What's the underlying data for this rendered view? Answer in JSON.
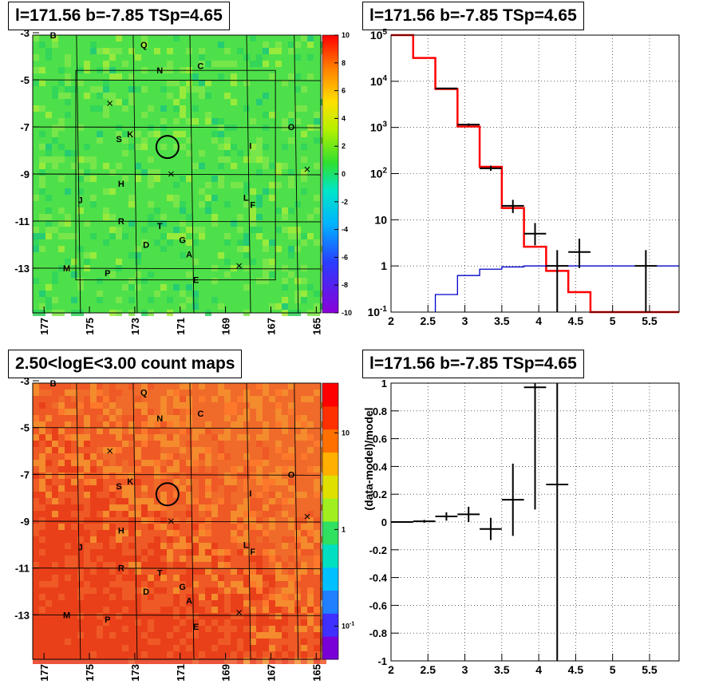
{
  "titles": {
    "top_left": "l=171.56 b=-7.85 TSp=4.65",
    "top_right": "l=171.56 b=-7.85 TSp=4.65",
    "bottom_left": "2.50<logE<3.00 count maps",
    "bottom_right": "l=171.56 b=-7.85 TSp=4.65"
  },
  "chart_data": [
    {
      "type": "heatmap",
      "panel": "top-left",
      "title": "l=171.56 b=-7.85 TSp=4.65",
      "x_ticks": [
        "177",
        "175",
        "173",
        "171",
        "169",
        "167",
        "165"
      ],
      "y_ticks": [
        "-3",
        "-5",
        "-7",
        "-9",
        "-11",
        "-13"
      ],
      "xlim": [
        177.5,
        164.8
      ],
      "ylim": [
        -14.9,
        -3.1
      ],
      "colorbar_ticks": [
        "10",
        "8",
        "6",
        "4",
        "2",
        "0",
        "-2",
        "-4",
        "-6",
        "-8",
        "-10"
      ],
      "colorbar_range": [
        -10,
        10
      ],
      "background_color": "#4ee04a",
      "source_labels": [
        {
          "label": "B",
          "l": 176.6,
          "b": -3.1
        },
        {
          "label": "Q",
          "l": 172.6,
          "b": -3.5
        },
        {
          "label": "N",
          "l": 171.9,
          "b": -4.6
        },
        {
          "label": "C",
          "l": 170.1,
          "b": -4.4
        },
        {
          "label": "O",
          "l": 166.1,
          "b": -7.0
        },
        {
          "label": "S",
          "l": 173.7,
          "b": -7.5
        },
        {
          "label": "K",
          "l": 173.2,
          "b": -7.3
        },
        {
          "label": "I",
          "l": 167.9,
          "b": -7.8
        },
        {
          "label": "H",
          "l": 173.6,
          "b": -9.4
        },
        {
          "label": "J",
          "l": 175.4,
          "b": -10.1
        },
        {
          "label": "L",
          "l": 168.1,
          "b": -10.0
        },
        {
          "label": "F",
          "l": 167.8,
          "b": -10.3
        },
        {
          "label": "R",
          "l": 173.6,
          "b": -11.0
        },
        {
          "label": "T",
          "l": 171.9,
          "b": -11.2
        },
        {
          "label": "G",
          "l": 170.9,
          "b": -11.8
        },
        {
          "label": "D",
          "l": 172.5,
          "b": -12.0
        },
        {
          "label": "A",
          "l": 170.6,
          "b": -12.4
        },
        {
          "label": "M",
          "l": 176.0,
          "b": -13.0
        },
        {
          "label": "P",
          "l": 174.2,
          "b": -13.2
        },
        {
          "label": "E",
          "l": 170.3,
          "b": -13.5
        }
      ],
      "crosses": [
        [
          174.1,
          -6.0
        ],
        [
          171.4,
          -9.0
        ],
        [
          168.4,
          -12.9
        ],
        [
          165.4,
          -8.8
        ]
      ],
      "circle": {
        "l": 171.56,
        "b": -7.85
      }
    },
    {
      "type": "line",
      "panel": "top-right",
      "title": "l=171.56 b=-7.85 TSp=4.65",
      "xlim": [
        2.0,
        5.9
      ],
      "ylim": [
        0.1,
        100000
      ],
      "log_y": true,
      "grid": true,
      "x_ticks": [
        "2",
        "2.5",
        "3",
        "3.5",
        "4",
        "4.5",
        "5",
        "5.5"
      ],
      "y_ticks": [
        "10^5",
        "10^4",
        "10^3",
        "10^2",
        "10",
        "1",
        "10^-1"
      ],
      "series": [
        {
          "color": "#ff0000",
          "style": "step",
          "edges": [
            2.0,
            2.3,
            2.6,
            2.9,
            3.2,
            3.5,
            3.8,
            4.1,
            4.4,
            4.7,
            5.0,
            5.3,
            5.6,
            5.9
          ],
          "values": [
            100000,
            32000,
            6800,
            1050,
            140,
            18,
            2.6,
            0.78,
            0.27,
            0.1,
            0.1,
            0.1,
            0.1
          ]
        },
        {
          "color": "#0000cc",
          "style": "step",
          "edges": [
            2.6,
            2.9,
            3.2,
            3.5,
            3.8,
            4.1,
            4.4,
            4.7,
            5.0,
            5.3,
            5.6,
            5.9
          ],
          "values": [
            0.24,
            0.62,
            0.85,
            0.95,
            1.0,
            1.0,
            1.0,
            1.0,
            1.0,
            1.0,
            1.0
          ]
        },
        {
          "color": "#000000",
          "style": "errorbar",
          "points": [
            {
              "x": 2.75,
              "xerr": 0.15,
              "y": 7000,
              "ylo": 6800,
              "yhi": 7200
            },
            {
              "x": 3.05,
              "xerr": 0.15,
              "y": 1150,
              "ylo": 1080,
              "yhi": 1220
            },
            {
              "x": 3.35,
              "xerr": 0.15,
              "y": 130,
              "ylo": 115,
              "yhi": 148
            },
            {
              "x": 3.65,
              "xerr": 0.15,
              "y": 20,
              "ylo": 14,
              "yhi": 27
            },
            {
              "x": 3.95,
              "xerr": 0.15,
              "y": 5,
              "ylo": 2.8,
              "yhi": 8.5
            },
            {
              "x": 4.25,
              "xerr": 0.15,
              "y": 1,
              "ylo": 0.1,
              "yhi": 2.2
            },
            {
              "x": 4.55,
              "xerr": 0.15,
              "y": 2,
              "ylo": 0.9,
              "yhi": 3.9
            },
            {
              "x": 5.45,
              "xerr": 0.15,
              "y": 1,
              "ylo": 0.1,
              "yhi": 2.2
            }
          ]
        }
      ]
    },
    {
      "type": "heatmap",
      "panel": "bottom-left",
      "title": "2.50<logE<3.00 count maps",
      "x_ticks": [
        "177",
        "175",
        "173",
        "171",
        "169",
        "167",
        "165"
      ],
      "y_ticks": [
        "-3",
        "-5",
        "-7",
        "-9",
        "-11",
        "-13"
      ],
      "xlim": [
        177.5,
        164.8
      ],
      "ylim": [
        -14.9,
        -3.1
      ],
      "colorbar_ticks": [
        "10",
        "1",
        "10^-1"
      ],
      "colorbar_log": true,
      "background_color": "#f06a2a",
      "source_labels": [
        {
          "label": "B",
          "l": 176.6,
          "b": -3.1
        },
        {
          "label": "Q",
          "l": 172.6,
          "b": -3.5
        },
        {
          "label": "N",
          "l": 171.9,
          "b": -4.6
        },
        {
          "label": "C",
          "l": 170.1,
          "b": -4.4
        },
        {
          "label": "O",
          "l": 166.1,
          "b": -7.0
        },
        {
          "label": "S",
          "l": 173.7,
          "b": -7.5
        },
        {
          "label": "K",
          "l": 173.2,
          "b": -7.3
        },
        {
          "label": "I",
          "l": 167.9,
          "b": -7.8
        },
        {
          "label": "H",
          "l": 173.6,
          "b": -9.4
        },
        {
          "label": "J",
          "l": 175.4,
          "b": -10.1
        },
        {
          "label": "L",
          "l": 168.1,
          "b": -10.0
        },
        {
          "label": "F",
          "l": 167.8,
          "b": -10.3
        },
        {
          "label": "R",
          "l": 173.6,
          "b": -11.0
        },
        {
          "label": "T",
          "l": 171.9,
          "b": -11.2
        },
        {
          "label": "G",
          "l": 170.9,
          "b": -11.8
        },
        {
          "label": "D",
          "l": 172.5,
          "b": -12.0
        },
        {
          "label": "A",
          "l": 170.6,
          "b": -12.4
        },
        {
          "label": "M",
          "l": 176.0,
          "b": -13.0
        },
        {
          "label": "P",
          "l": 174.2,
          "b": -13.2
        },
        {
          "label": "E",
          "l": 170.3,
          "b": -13.5
        }
      ],
      "crosses": [
        [
          174.1,
          -6.0
        ],
        [
          171.4,
          -9.0
        ],
        [
          168.4,
          -12.9
        ],
        [
          165.4,
          -8.8
        ]
      ],
      "circle": {
        "l": 171.56,
        "b": -7.85
      }
    },
    {
      "type": "scatter",
      "panel": "bottom-right",
      "title": "l=171.56 b=-7.85 TSp=4.65",
      "ylabel": "(data-model)/model",
      "xlim": [
        2.0,
        5.9
      ],
      "ylim": [
        -1,
        1
      ],
      "grid": true,
      "x_ticks": [
        "2",
        "2.5",
        "3",
        "3.5",
        "4",
        "4.5",
        "5",
        "5.5"
      ],
      "y_ticks": [
        "1",
        "0.8",
        "0.6",
        "0.4",
        "0.2",
        "0",
        "-0.2",
        "-0.4",
        "-0.6",
        "-0.8",
        "-1"
      ],
      "points": [
        {
          "x": 2.15,
          "xerr": 0.15,
          "y": 0.0,
          "ylo": -0.005,
          "yhi": 0.005
        },
        {
          "x": 2.45,
          "xerr": 0.15,
          "y": 0.005,
          "ylo": -0.005,
          "yhi": 0.015
        },
        {
          "x": 2.75,
          "xerr": 0.15,
          "y": 0.04,
          "ylo": 0.01,
          "yhi": 0.07
        },
        {
          "x": 3.05,
          "xerr": 0.15,
          "y": 0.055,
          "ylo": 0.0,
          "yhi": 0.11
        },
        {
          "x": 3.35,
          "xerr": 0.15,
          "y": -0.05,
          "ylo": -0.13,
          "yhi": 0.03
        },
        {
          "x": 3.65,
          "xerr": 0.15,
          "y": 0.16,
          "ylo": -0.1,
          "yhi": 0.42
        },
        {
          "x": 3.95,
          "xerr": 0.15,
          "y": 0.97,
          "ylo": 0.09,
          "yhi": 1.0
        },
        {
          "x": 4.25,
          "xerr": 0.15,
          "y": 0.27,
          "ylo": -1.0,
          "yhi": 1.0
        }
      ]
    }
  ]
}
